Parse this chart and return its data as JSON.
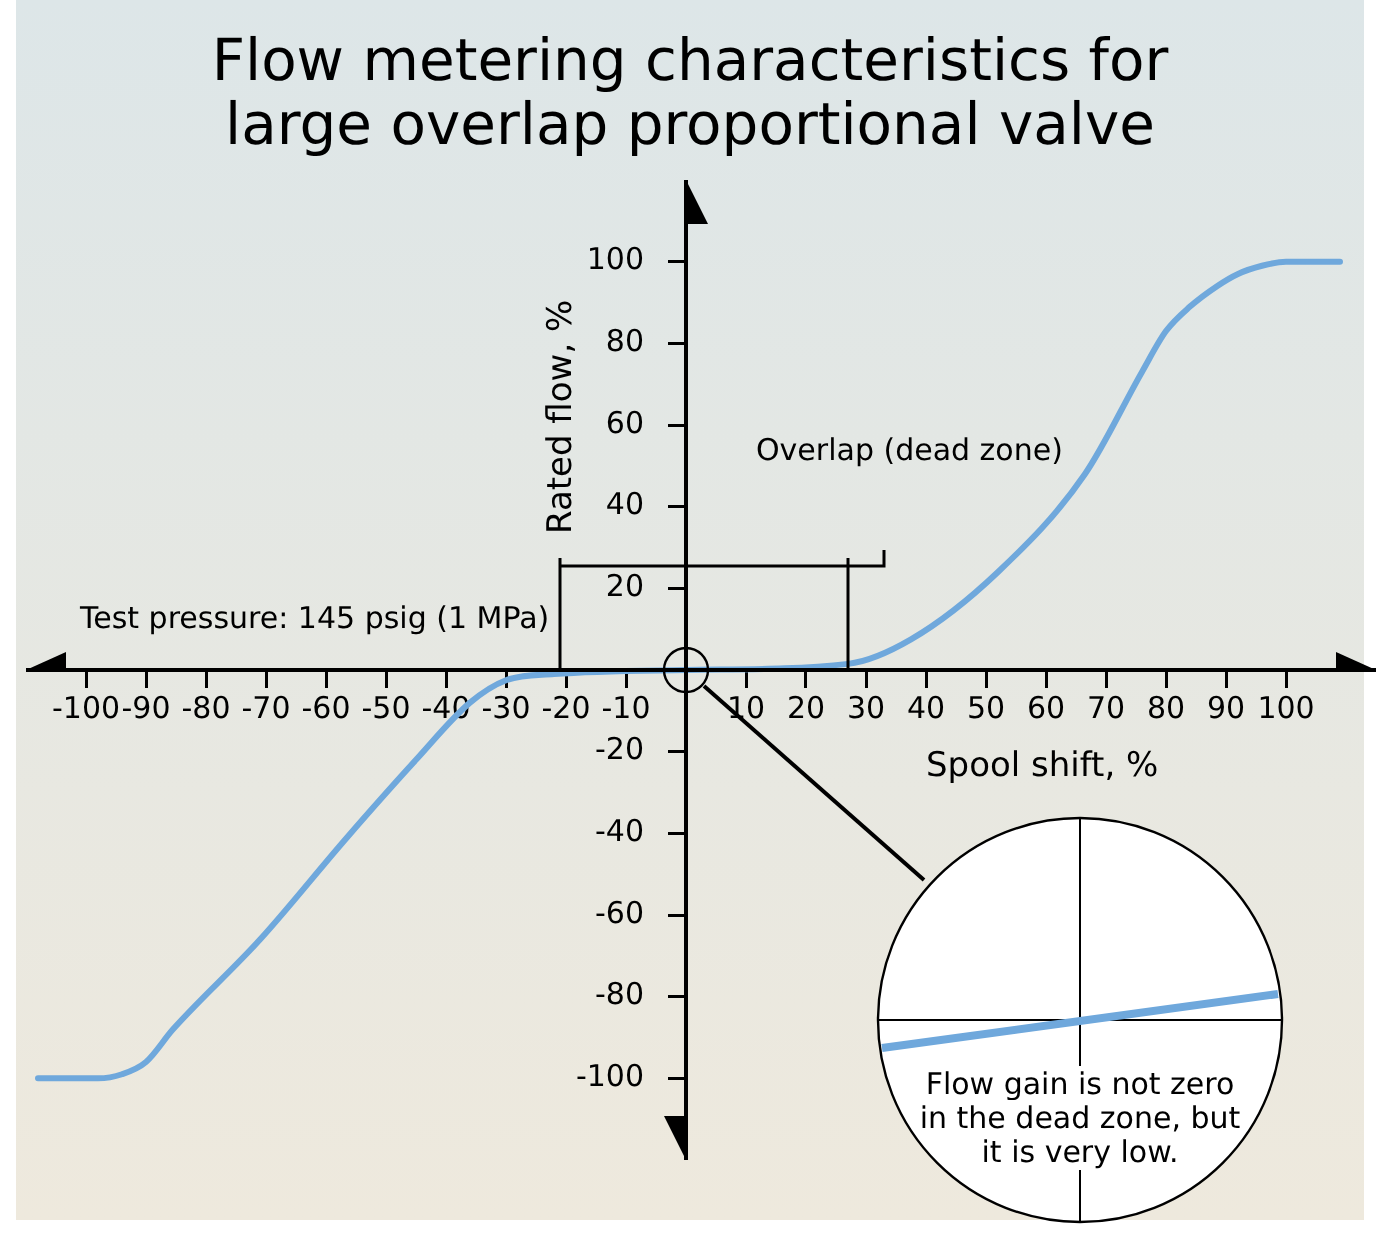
{
  "chart_data": {
    "type": "line",
    "title": "Flow metering characteristics for\nlarge overlap proportional valve",
    "xlabel": "Spool shift, %",
    "ylabel": "Rated flow, %",
    "x": [
      -108,
      -98,
      -94,
      -90,
      -85.5,
      -71,
      -56.5,
      -45,
      -36,
      -30,
      -22,
      0,
      27,
      37.5,
      52,
      66.5,
      76,
      80,
      84,
      88.5,
      92,
      96,
      100,
      109
    ],
    "series": [
      {
        "color": "#6fa8dc",
        "values": [
          -100,
          -100,
          -99,
          -96,
          -88,
          -66,
          -41,
          -22,
          -8,
          -2.5,
          -1,
          0,
          1.5,
          7.5,
          24,
          48,
          73,
          83,
          89,
          94,
          97,
          99,
          100,
          100
        ]
      }
    ],
    "xlim": [
      -110,
      115
    ],
    "ylim": [
      -120,
      120
    ],
    "xticks": [
      -100,
      -90,
      -80,
      -70,
      -60,
      -50,
      -40,
      -30,
      -20,
      -10,
      10,
      20,
      30,
      40,
      50,
      60,
      70,
      80,
      90,
      100
    ],
    "yticks": [
      -100,
      -80,
      -60,
      -40,
      -20,
      20,
      40,
      60,
      80,
      100
    ],
    "annotations": [
      "Test pressure: 145 psig (1 MPa)",
      "Overlap (dead zone)",
      "Flow gain is not zero\nin the dead zone, but\nit is very low."
    ],
    "grid": false,
    "legend": false,
    "marker": "none",
    "line_style": "solid"
  }
}
